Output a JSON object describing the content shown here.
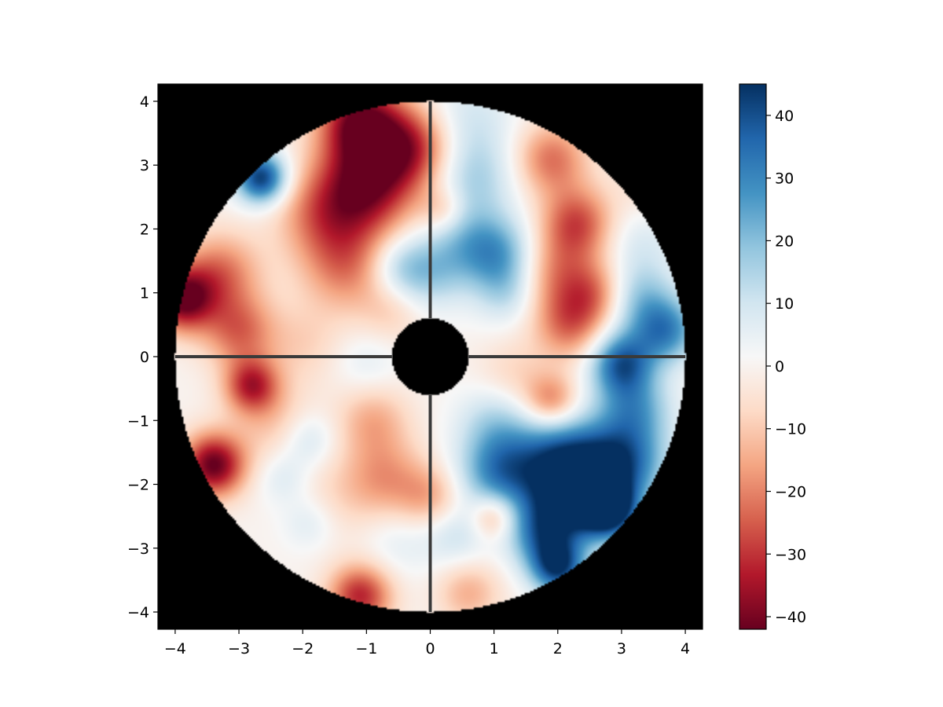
{
  "chart_data": {
    "type": "heatmap",
    "title": "",
    "xlabel": "",
    "ylabel": "",
    "xlim": [
      -4.27,
      4.27
    ],
    "ylim": [
      -4.27,
      4.27
    ],
    "xticks": [
      -4,
      -3,
      -2,
      -1,
      0,
      1,
      2,
      3,
      4
    ],
    "yticks": [
      -4,
      -3,
      -2,
      -1,
      0,
      1,
      2,
      3,
      4
    ],
    "xtick_labels": [
      "−4",
      "−3",
      "−2",
      "−1",
      "0",
      "1",
      "2",
      "3",
      "4"
    ],
    "ytick_labels": [
      "−4",
      "−3",
      "−2",
      "−1",
      "0",
      "1",
      "2",
      "3",
      "4"
    ],
    "grid": false,
    "background": "#000000",
    "aperture": {
      "outer_radius": 4.0,
      "inner_radius": 0.6,
      "spider_arms": [
        "up",
        "down",
        "left",
        "right"
      ],
      "spider_color": "#3a3a3a"
    },
    "colormap": "RdBu",
    "colormap_stops": [
      "#67001f",
      "#b2182b",
      "#d6604d",
      "#f4a582",
      "#fddbc7",
      "#f7f7f7",
      "#d1e5f0",
      "#92c5de",
      "#4393c3",
      "#2166ac",
      "#053061"
    ],
    "colorbar": {
      "vmin": -42,
      "vmax": 45,
      "ticks": [
        -40,
        -30,
        -20,
        -10,
        0,
        10,
        20,
        30,
        40
      ],
      "tick_labels": [
        "−40",
        "−30",
        "−20",
        "−10",
        "0",
        "10",
        "20",
        "30",
        "40"
      ]
    },
    "field_features": [
      {
        "x": -2.65,
        "y": 2.8,
        "value": 44,
        "sigma": 0.28
      },
      {
        "x": -1.1,
        "y": 3.7,
        "value": -38,
        "sigma": 0.45
      },
      {
        "x": -1.0,
        "y": 2.7,
        "value": -38,
        "sigma": 0.55
      },
      {
        "x": -0.3,
        "y": 3.3,
        "value": -28,
        "sigma": 0.45
      },
      {
        "x": -1.7,
        "y": 2.2,
        "value": -18,
        "sigma": 0.5
      },
      {
        "x": -3.9,
        "y": 0.9,
        "value": -40,
        "sigma": 0.35
      },
      {
        "x": -3.3,
        "y": 1.3,
        "value": -22,
        "sigma": 0.45
      },
      {
        "x": -3.0,
        "y": 0.4,
        "value": -22,
        "sigma": 0.4
      },
      {
        "x": -1.3,
        "y": 1.4,
        "value": -20,
        "sigma": 0.5
      },
      {
        "x": -2.0,
        "y": 0.2,
        "value": -8,
        "sigma": 0.45
      },
      {
        "x": -0.6,
        "y": 0.7,
        "value": -8,
        "sigma": 0.35
      },
      {
        "x": -0.5,
        "y": 1.4,
        "value": 14,
        "sigma": 0.35
      },
      {
        "x": -1.0,
        "y": -0.1,
        "value": 6,
        "sigma": 0.35
      },
      {
        "x": -2.8,
        "y": -0.45,
        "value": -30,
        "sigma": 0.3
      },
      {
        "x": -3.4,
        "y": -1.7,
        "value": -42,
        "sigma": 0.35
      },
      {
        "x": -2.5,
        "y": -1.0,
        "value": -10,
        "sigma": 0.45
      },
      {
        "x": -1.9,
        "y": -1.3,
        "value": 10,
        "sigma": 0.3
      },
      {
        "x": -0.9,
        "y": -1.0,
        "value": -14,
        "sigma": 0.4
      },
      {
        "x": -0.7,
        "y": -1.9,
        "value": -16,
        "sigma": 0.45
      },
      {
        "x": -1.5,
        "y": -2.2,
        "value": -6,
        "sigma": 0.5
      },
      {
        "x": -2.3,
        "y": -1.9,
        "value": 8,
        "sigma": 0.3
      },
      {
        "x": -1.9,
        "y": -2.6,
        "value": 8,
        "sigma": 0.3
      },
      {
        "x": -0.5,
        "y": -2.9,
        "value": 6,
        "sigma": 0.4
      },
      {
        "x": -1.1,
        "y": -3.75,
        "value": -32,
        "sigma": 0.35
      },
      {
        "x": 0.0,
        "y": -2.2,
        "value": -14,
        "sigma": 0.35
      },
      {
        "x": 0.6,
        "y": 3.7,
        "value": 10,
        "sigma": 0.5
      },
      {
        "x": 0.7,
        "y": 2.8,
        "value": 14,
        "sigma": 0.45
      },
      {
        "x": 0.6,
        "y": 1.8,
        "value": 16,
        "sigma": 0.45
      },
      {
        "x": 0.0,
        "y": 1.3,
        "value": 14,
        "sigma": 0.4
      },
      {
        "x": 1.1,
        "y": 1.6,
        "value": 20,
        "sigma": 0.4
      },
      {
        "x": 1.2,
        "y": 1.0,
        "value": 12,
        "sigma": 0.35
      },
      {
        "x": 0.2,
        "y": 2.3,
        "value": -12,
        "sigma": 0.25
      },
      {
        "x": 1.9,
        "y": 3.1,
        "value": -22,
        "sigma": 0.4
      },
      {
        "x": 2.3,
        "y": 2.1,
        "value": -26,
        "sigma": 0.4
      },
      {
        "x": 2.0,
        "y": 1.3,
        "value": -18,
        "sigma": 0.45
      },
      {
        "x": 2.2,
        "y": 0.5,
        "value": -22,
        "sigma": 0.4
      },
      {
        "x": 2.6,
        "y": 1.0,
        "value": -16,
        "sigma": 0.35
      },
      {
        "x": 3.3,
        "y": 1.8,
        "value": 8,
        "sigma": 0.4
      },
      {
        "x": 3.3,
        "y": 0.9,
        "value": 18,
        "sigma": 0.4
      },
      {
        "x": 3.7,
        "y": 0.4,
        "value": 28,
        "sigma": 0.35
      },
      {
        "x": 3.0,
        "y": -0.1,
        "value": 36,
        "sigma": 0.35
      },
      {
        "x": 3.2,
        "y": -0.8,
        "value": 22,
        "sigma": 0.4
      },
      {
        "x": 1.3,
        "y": -0.3,
        "value": -8,
        "sigma": 0.4
      },
      {
        "x": 1.9,
        "y": -0.7,
        "value": -22,
        "sigma": 0.3
      },
      {
        "x": 1.0,
        "y": -1.0,
        "value": 12,
        "sigma": 0.4
      },
      {
        "x": 1.1,
        "y": -1.8,
        "value": 30,
        "sigma": 0.45
      },
      {
        "x": 2.0,
        "y": -1.6,
        "value": 30,
        "sigma": 0.5
      },
      {
        "x": 2.6,
        "y": -1.9,
        "value": 30,
        "sigma": 0.5
      },
      {
        "x": 3.1,
        "y": -1.6,
        "value": 24,
        "sigma": 0.45
      },
      {
        "x": 2.8,
        "y": -2.4,
        "value": 44,
        "sigma": 0.3
      },
      {
        "x": 2.1,
        "y": -2.4,
        "value": 28,
        "sigma": 0.45
      },
      {
        "x": 2.0,
        "y": -3.3,
        "value": 40,
        "sigma": 0.3
      },
      {
        "x": 1.7,
        "y": -2.8,
        "value": 22,
        "sigma": 0.35
      },
      {
        "x": 1.0,
        "y": -2.5,
        "value": -18,
        "sigma": 0.25
      },
      {
        "x": 0.4,
        "y": -2.8,
        "value": 10,
        "sigma": 0.35
      },
      {
        "x": 0.6,
        "y": -3.7,
        "value": -14,
        "sigma": 0.35
      },
      {
        "x": 3.5,
        "y": 2.7,
        "value": -6,
        "sigma": 0.4
      }
    ]
  }
}
